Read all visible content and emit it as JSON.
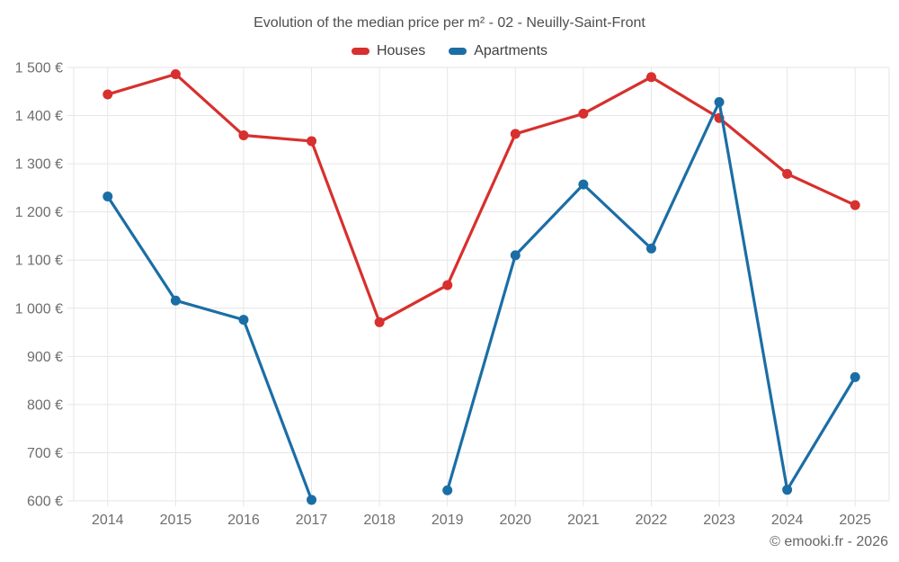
{
  "chart": {
    "title": "Evolution of the median price per m² - 02 - Neuilly-Saint-Front",
    "copyright": "© emooki.fr - 2026"
  },
  "chart_data": {
    "type": "line",
    "title": "Evolution of the median price per m² - 02 - Neuilly-Saint-Front",
    "categories": [
      "2014",
      "2015",
      "2016",
      "2017",
      "2018",
      "2019",
      "2020",
      "2021",
      "2022",
      "2023",
      "2024",
      "2025"
    ],
    "series": [
      {
        "name": "Houses",
        "color": "#d7302e",
        "values": [
          1444,
          1486,
          1359,
          1347,
          971,
          1048,
          1362,
          1404,
          1480,
          1395,
          1279,
          1214
        ]
      },
      {
        "name": "Apartments",
        "color": "#1b6ea5",
        "values": [
          1232,
          1016,
          976,
          602,
          null,
          622,
          1110,
          1257,
          1124,
          1428,
          623,
          857
        ]
      }
    ],
    "xlabel": "",
    "ylabel": "",
    "ylim": [
      600,
      1500
    ],
    "y_tick_step": 100,
    "y_tick_labels": [
      "1 500 €",
      "1 400 €",
      "1 300 €",
      "1 200 €",
      "1 100 €",
      "1 000 €",
      "900 €",
      "800 €",
      "700 €",
      "600 €"
    ],
    "grid": true,
    "legend_position": "top",
    "grid_color": "#e6e6e6",
    "axis_label_color": "#6e6e6e",
    "marker_radius": 5.5,
    "line_width": 3.2
  }
}
